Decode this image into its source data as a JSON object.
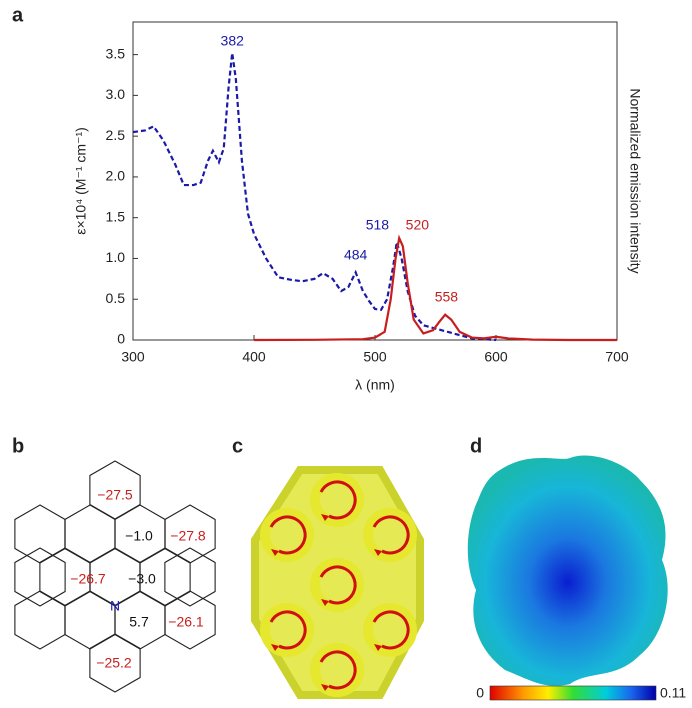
{
  "chart_data": {
    "type": "line",
    "panel_label": "a",
    "x_label": "λ (nm)",
    "y_label": "ε×10⁴ (M⁻¹ cm⁻¹)",
    "y2_label": "Normalized emission intensity",
    "xlim": [
      300,
      700
    ],
    "xticks": [
      300,
      400,
      500,
      600,
      700
    ],
    "ylim": [
      0,
      3.9
    ],
    "yticks": [
      0,
      0.5,
      {
        "value": 1,
        "label": "1.0"
      },
      1.5,
      {
        "value": 2,
        "label": "2.0"
      },
      2.5,
      {
        "value": 3,
        "label": "3.0"
      },
      3.5
    ],
    "series": [
      {
        "color": "#1a1aa8",
        "dashed": true,
        "x": [
          300,
          310,
          317,
          325,
          335,
          342,
          350,
          356,
          362,
          366,
          371,
          375,
          379,
          382,
          385,
          390,
          395,
          400,
          410,
          420,
          430,
          440,
          450,
          457,
          465,
          472,
          478,
          484,
          490,
          495,
          500,
          505,
          510,
          515,
          518,
          522,
          527,
          533,
          540,
          550,
          560,
          570,
          580,
          600
        ],
        "values": [
          2.55,
          2.57,
          2.62,
          2.45,
          2.15,
          1.9,
          1.9,
          1.93,
          2.2,
          2.32,
          2.18,
          2.35,
          3.1,
          3.52,
          3.2,
          2.2,
          1.55,
          1.3,
          1.0,
          0.77,
          0.74,
          0.72,
          0.75,
          0.82,
          0.75,
          0.6,
          0.65,
          0.83,
          0.6,
          0.48,
          0.38,
          0.37,
          0.5,
          0.9,
          1.2,
          1.0,
          0.6,
          0.3,
          0.18,
          0.14,
          0.1,
          0.06,
          0.02,
          0
        ]
      },
      {
        "color": "#c81e1e",
        "dashed": false,
        "x": [
          400,
          450,
          490,
          500,
          508,
          513,
          517,
          520,
          523,
          527,
          532,
          540,
          548,
          553,
          558,
          563,
          570,
          580,
          590,
          600,
          610,
          630,
          660,
          700
        ],
        "values": [
          0,
          0.002,
          0.01,
          0.03,
          0.1,
          0.5,
          1.0,
          1.25,
          1.15,
          0.7,
          0.25,
          0.08,
          0.12,
          0.22,
          0.31,
          0.25,
          0.1,
          0.03,
          0.02,
          0.04,
          0.02,
          0.005,
          0,
          0
        ]
      }
    ],
    "annotations": [
      {
        "text": "382",
        "color": "#1a1aa8",
        "x": 382,
        "y": 3.66
      },
      {
        "text": "484",
        "color": "#1a1aa8",
        "x": 484,
        "y": 1.03
      },
      {
        "text": "518",
        "color": "#1a1aa8",
        "x": 502,
        "y": 1.4
      },
      {
        "text": "520",
        "color": "#c81e1e",
        "x": 535,
        "y": 1.4
      },
      {
        "text": "558",
        "color": "#c81e1e",
        "x": 559,
        "y": 0.52
      }
    ]
  },
  "nics": {
    "panel_label": "b",
    "atom": "N",
    "rings": [
      {
        "label": "−27.5",
        "color": "#c81e1e"
      },
      {
        "label": "−1.0",
        "color": "#111"
      },
      {
        "label": "−27.8",
        "color": "#c81e1e"
      },
      {
        "label": "−26.7",
        "color": "#c81e1e"
      },
      {
        "label": "−3.0",
        "color": "#111"
      },
      {
        "label": "5.7",
        "color": "#111"
      },
      {
        "label": "−26.1",
        "color": "#c81e1e"
      },
      {
        "label": "−25.2",
        "color": "#c81e1e"
      }
    ]
  },
  "current": {
    "panel_label": "c"
  },
  "esp": {
    "panel_label": "d",
    "colorbar_ticks": [
      0,
      0.11
    ]
  }
}
